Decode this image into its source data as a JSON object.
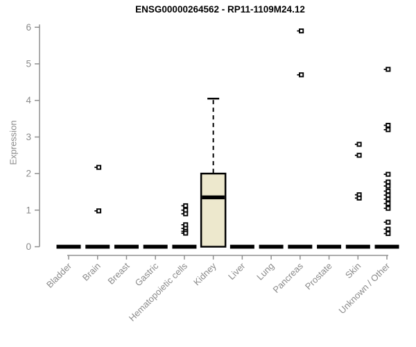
{
  "chart_data": {
    "type": "boxplot",
    "title": "ENSG00000264562 - RP11-1109M24.12",
    "ylabel": "Expression",
    "xlabel": "",
    "ylim": [
      0,
      6
    ],
    "yticks": [
      0,
      1,
      2,
      3,
      4,
      5,
      6
    ],
    "grid": false,
    "legend": false,
    "axis_color": "#8f8f8f",
    "label_color": "#8a8a8a",
    "box_fill": "#ede8cd",
    "box_border": "#000000",
    "outlier_color": "#000000",
    "categories": [
      "Bladder",
      "Brain",
      "Breast",
      "Gastric",
      "Hematopoietic cells",
      "Kidney",
      "Liver",
      "Lung",
      "Pancreas",
      "Prostate",
      "Skin",
      "Unknown / Other"
    ],
    "boxes": [
      {
        "category": "Bladder",
        "q1": 0,
        "median": 0,
        "q3": 0,
        "whisker_low": 0,
        "whisker_high": 0,
        "outliers": []
      },
      {
        "category": "Brain",
        "q1": 0,
        "median": 0,
        "q3": 0,
        "whisker_low": 0,
        "whisker_high": 0,
        "outliers": [
          2.17,
          0.98
        ]
      },
      {
        "category": "Breast",
        "q1": 0,
        "median": 0,
        "q3": 0,
        "whisker_low": 0,
        "whisker_high": 0,
        "outliers": []
      },
      {
        "category": "Gastric",
        "q1": 0,
        "median": 0,
        "q3": 0,
        "whisker_low": 0,
        "whisker_high": 0,
        "outliers": []
      },
      {
        "category": "Hematopoietic cells",
        "q1": 0,
        "median": 0,
        "q3": 0,
        "whisker_low": 0,
        "whisker_high": 0,
        "outliers": [
          1.12,
          1.0,
          0.9,
          0.6,
          0.5,
          0.42,
          0.37
        ]
      },
      {
        "category": "Kidney",
        "q1": 0,
        "median": 1.35,
        "q3": 2.0,
        "whisker_low": 0,
        "whisker_high": 4.05,
        "outliers": []
      },
      {
        "category": "Liver",
        "q1": 0,
        "median": 0,
        "q3": 0,
        "whisker_low": 0,
        "whisker_high": 0,
        "outliers": []
      },
      {
        "category": "Lung",
        "q1": 0,
        "median": 0,
        "q3": 0,
        "whisker_low": 0,
        "whisker_high": 0,
        "outliers": []
      },
      {
        "category": "Pancreas",
        "q1": 0,
        "median": 0,
        "q3": 0,
        "whisker_low": 0,
        "whisker_high": 0,
        "outliers": [
          5.9,
          4.7
        ]
      },
      {
        "category": "Prostate",
        "q1": 0,
        "median": 0,
        "q3": 0,
        "whisker_low": 0,
        "whisker_high": 0,
        "outliers": []
      },
      {
        "category": "Skin",
        "q1": 0,
        "median": 0,
        "q3": 0,
        "whisker_low": 0,
        "whisker_high": 0,
        "outliers": [
          2.8,
          2.5,
          1.42,
          1.33
        ]
      },
      {
        "category": "Unknown / Other",
        "q1": 0,
        "median": 0,
        "q3": 0,
        "whisker_low": 0,
        "whisker_high": 0,
        "outliers": [
          4.85,
          3.32,
          3.2,
          1.98,
          1.77,
          1.66,
          1.52,
          1.41,
          1.3,
          1.18,
          1.05,
          0.67,
          0.48,
          0.36
        ]
      }
    ]
  }
}
